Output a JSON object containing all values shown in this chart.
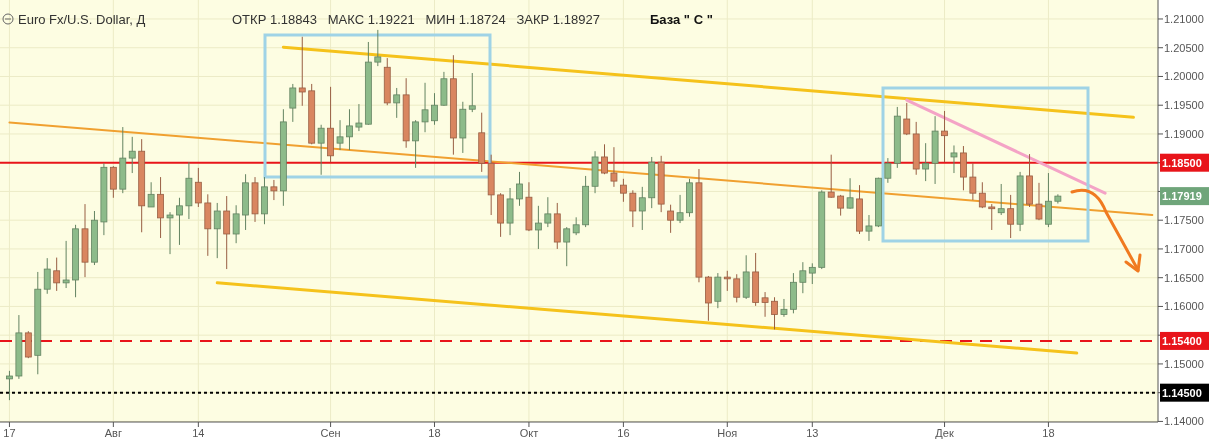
{
  "chart_data": {
    "type": "candlestick",
    "title": "Euro Fx/U.S. Dollar, Д",
    "subtitle": "ОТКР 1.18843   МАКС 1.19221   МИН 1.18724   ЗАКР 1.18927",
    "annotations": [
      "База \" С \"",
      "1.17919"
    ],
    "categories": [
      "17",
      null,
      null,
      null,
      null,
      null,
      null,
      null,
      null,
      null,
      null,
      "Авг",
      null,
      null,
      null,
      null,
      null,
      null,
      null,
      null,
      "14",
      null,
      null,
      null,
      null,
      null,
      null,
      null,
      null,
      null,
      null,
      null,
      null,
      null,
      "Сен",
      null,
      null,
      null,
      null,
      null,
      null,
      null,
      null,
      null,
      null,
      "18",
      null,
      null,
      null,
      null,
      null,
      null,
      null,
      null,
      null,
      "Окт",
      null,
      null,
      null,
      null,
      null,
      null,
      null,
      null,
      null,
      "16",
      null,
      null,
      null,
      null,
      null,
      null,
      null,
      null,
      null,
      null,
      "Ноя",
      null,
      null,
      null,
      null,
      null,
      null,
      null,
      null,
      "13",
      null,
      null,
      null,
      null,
      null,
      null,
      null,
      null,
      null,
      null,
      null,
      null,
      null,
      "Дек",
      null,
      null,
      null,
      null,
      null,
      null,
      null,
      null,
      null,
      null,
      "18",
      null,
      null,
      null,
      null,
      null,
      null,
      null,
      null,
      null,
      null,
      null
    ],
    "ohlc": [
      [
        1.1474,
        1.1488,
        1.1437,
        1.1479
      ],
      [
        1.1479,
        1.1585,
        1.1474,
        1.1554
      ],
      [
        1.1554,
        1.1557,
        1.151,
        1.1512
      ],
      [
        1.1515,
        1.166,
        1.1482,
        1.163
      ],
      [
        1.163,
        1.1684,
        1.1622,
        1.1665
      ],
      [
        1.1662,
        1.1685,
        1.1627,
        1.1641
      ],
      [
        1.1641,
        1.1714,
        1.1632,
        1.1646
      ],
      [
        1.1646,
        1.1742,
        1.1616,
        1.1735
      ],
      [
        1.1735,
        1.1778,
        1.1651,
        1.1677
      ],
      [
        1.1677,
        1.1766,
        1.1672,
        1.175
      ],
      [
        1.1747,
        1.1849,
        1.1724,
        1.1842
      ],
      [
        1.1842,
        1.1844,
        1.1789,
        1.1804
      ],
      [
        1.1804,
        1.1912,
        1.1797,
        1.1858
      ],
      [
        1.1858,
        1.1895,
        1.1832,
        1.187
      ],
      [
        1.187,
        1.1891,
        1.1729,
        1.1775
      ],
      [
        1.1773,
        1.1816,
        1.1773,
        1.1795
      ],
      [
        1.1795,
        1.1825,
        1.1719,
        1.1754
      ],
      [
        1.1754,
        1.1764,
        1.1691,
        1.1759
      ],
      [
        1.1759,
        1.1789,
        1.1707,
        1.1775
      ],
      [
        1.1775,
        1.1851,
        1.1752,
        1.1823
      ],
      [
        1.1816,
        1.1841,
        1.1773,
        1.178
      ],
      [
        1.178,
        1.1795,
        1.1688,
        1.1735
      ],
      [
        1.1735,
        1.178,
        1.1684,
        1.1766
      ],
      [
        1.1766,
        1.1792,
        1.1665,
        1.1726
      ],
      [
        1.1726,
        1.1776,
        1.171,
        1.1761
      ],
      [
        1.1759,
        1.183,
        1.1733,
        1.1815
      ],
      [
        1.1815,
        1.1825,
        1.1747,
        1.1761
      ],
      [
        1.1761,
        1.1825,
        1.1743,
        1.1808
      ],
      [
        1.1808,
        1.182,
        1.1785,
        1.1801
      ],
      [
        1.1801,
        1.1943,
        1.1775,
        1.1921
      ],
      [
        1.1945,
        1.1987,
        1.1921,
        1.198
      ],
      [
        1.198,
        1.2069,
        1.1949,
        1.1973
      ],
      [
        1.1975,
        1.1987,
        1.1882,
        1.1884
      ],
      [
        1.1884,
        1.1916,
        1.1829,
        1.191
      ],
      [
        1.191,
        1.1982,
        1.1851,
        1.1862
      ],
      [
        1.1884,
        1.1924,
        1.1872,
        1.1895
      ],
      [
        1.1895,
        1.1943,
        1.1872,
        1.1914
      ],
      [
        1.1912,
        1.1952,
        1.1905,
        1.1919
      ],
      [
        1.1917,
        1.206,
        1.1916,
        1.2025
      ],
      [
        1.2025,
        1.2081,
        1.2018,
        1.2034
      ],
      [
        1.2016,
        1.2032,
        1.195,
        1.1954
      ],
      [
        1.1954,
        1.198,
        1.1928,
        1.1968
      ],
      [
        1.1968,
        1.1997,
        1.1876,
        1.1888
      ],
      [
        1.1888,
        1.1924,
        1.1841,
        1.1921
      ],
      [
        1.1921,
        1.1989,
        1.1903,
        1.1942
      ],
      [
        1.1923,
        1.1971,
        1.1916,
        1.195
      ],
      [
        1.195,
        1.2008,
        1.1949,
        1.1996
      ],
      [
        1.1996,
        1.2037,
        1.1864,
        1.1893
      ],
      [
        1.1893,
        1.1956,
        1.1867,
        1.1943
      ],
      [
        1.1943,
        1.2006,
        1.1938,
        1.1949
      ],
      [
        1.1902,
        1.1937,
        1.1834,
        1.1849
      ],
      [
        1.1849,
        1.1864,
        1.1759,
        1.1794
      ],
      [
        1.1794,
        1.1797,
        1.1721,
        1.1745
      ],
      [
        1.1745,
        1.1806,
        1.1724,
        1.1787
      ],
      [
        1.1787,
        1.1834,
        1.1775,
        1.1813
      ],
      [
        1.179,
        1.1816,
        1.1731,
        1.1733
      ],
      [
        1.1733,
        1.1775,
        1.17,
        1.1745
      ],
      [
        1.1745,
        1.179,
        1.1738,
        1.1761
      ],
      [
        1.1761,
        1.178,
        1.17,
        1.1712
      ],
      [
        1.1712,
        1.1738,
        1.167,
        1.1735
      ],
      [
        1.1728,
        1.1755,
        1.1724,
        1.1742
      ],
      [
        1.1742,
        1.1827,
        1.1738,
        1.1809
      ],
      [
        1.1809,
        1.187,
        1.1797,
        1.186
      ],
      [
        1.186,
        1.1882,
        1.183,
        1.1832
      ],
      [
        1.1832,
        1.1877,
        1.1808,
        1.1818
      ],
      [
        1.1811,
        1.1822,
        1.1782,
        1.1797
      ],
      [
        1.1797,
        1.1802,
        1.1738,
        1.1766
      ],
      [
        1.1766,
        1.1808,
        1.1733,
        1.1789
      ],
      [
        1.1789,
        1.186,
        1.1771,
        1.1851
      ],
      [
        1.1851,
        1.1862,
        1.1764,
        1.1778
      ],
      [
        1.1766,
        1.1777,
        1.1728,
        1.175
      ],
      [
        1.175,
        1.1794,
        1.1745,
        1.1763
      ],
      [
        1.1763,
        1.1822,
        1.1756,
        1.1815
      ],
      [
        1.1815,
        1.1839,
        1.1642,
        1.1651
      ],
      [
        1.1651,
        1.1653,
        1.1575,
        1.1606
      ],
      [
        1.1609,
        1.1658,
        1.1597,
        1.1651
      ],
      [
        1.1651,
        1.1662,
        1.1627,
        1.1648
      ],
      [
        1.1648,
        1.1656,
        1.1607,
        1.1616
      ],
      [
        1.1616,
        1.1689,
        1.1613,
        1.166
      ],
      [
        1.166,
        1.1693,
        1.1601,
        1.1607
      ],
      [
        1.1615,
        1.1625,
        1.1582,
        1.1607
      ],
      [
        1.1609,
        1.1616,
        1.156,
        1.1586
      ],
      [
        1.1586,
        1.1613,
        1.1582,
        1.1595
      ],
      [
        1.1595,
        1.1658,
        1.1588,
        1.1642
      ],
      [
        1.1642,
        1.1677,
        1.1623,
        1.1662
      ],
      [
        1.1658,
        1.1675,
        1.1639,
        1.1668
      ],
      [
        1.1668,
        1.1802,
        1.1665,
        1.1799
      ],
      [
        1.1799,
        1.1864,
        1.1789,
        1.179
      ],
      [
        1.1792,
        1.1794,
        1.1758,
        1.1771
      ],
      [
        1.1771,
        1.1823,
        1.177,
        1.1789
      ],
      [
        1.1787,
        1.1811,
        1.1726,
        1.1731
      ],
      [
        1.1731,
        1.1759,
        1.1714,
        1.174
      ],
      [
        1.174,
        1.1824,
        1.1738,
        1.1823
      ],
      [
        1.1823,
        1.1858,
        1.1815,
        1.1849
      ],
      [
        1.1849,
        1.1947,
        1.1841,
        1.1931
      ],
      [
        1.1926,
        1.1954,
        1.1898,
        1.19
      ],
      [
        1.19,
        1.1921,
        1.1829,
        1.1839
      ],
      [
        1.1839,
        1.1884,
        1.1818,
        1.1849
      ],
      [
        1.1849,
        1.1931,
        1.1813,
        1.1905
      ],
      [
        1.1905,
        1.194,
        1.1851,
        1.1897
      ],
      [
        1.186,
        1.188,
        1.1832,
        1.1867
      ],
      [
        1.1867,
        1.1879,
        1.1802,
        1.1825
      ],
      [
        1.1825,
        1.1849,
        1.1785,
        1.1797
      ],
      [
        1.1797,
        1.1816,
        1.1771,
        1.1773
      ],
      [
        1.1773,
        1.1778,
        1.1733,
        1.177
      ],
      [
        1.1763,
        1.1813,
        1.1759,
        1.177
      ],
      [
        1.177,
        1.1794,
        1.1719,
        1.1743
      ],
      [
        1.1743,
        1.1834,
        1.1731,
        1.1827
      ],
      [
        1.1827,
        1.1865,
        1.1773,
        1.1778
      ],
      [
        1.1778,
        1.1815,
        1.175,
        1.1752
      ],
      [
        1.1743,
        1.1832,
        1.1738,
        1.1783
      ],
      [
        1.1783,
        1.1795,
        1.1779,
        1.17919
      ],
      null,
      null,
      null,
      null,
      null,
      null,
      null,
      null,
      null,
      null
    ],
    "colors": [
      "#8dbb8a",
      "#8dbb8a",
      "#d98660",
      "#8dbb8a",
      "#8dbb8a",
      "#d98660",
      "#8dbb8a",
      "#8dbb8a",
      "#d98660",
      "#8dbb8a",
      "#8dbb8a",
      "#d98660",
      "#8dbb8a",
      "#8dbb8a",
      "#d98660",
      "#8dbb8a",
      "#d98660",
      "#8dbb8a",
      "#8dbb8a",
      "#8dbb8a",
      "#d98660",
      "#d98660",
      "#8dbb8a",
      "#d98660",
      "#8dbb8a",
      "#8dbb8a",
      "#d98660",
      "#8dbb8a",
      "#d98660",
      "#8dbb8a",
      "#8dbb8a",
      "#d98660",
      "#d98660",
      "#8dbb8a",
      "#d98660",
      "#8dbb8a",
      "#8dbb8a",
      "#8dbb8a",
      "#8dbb8a",
      "#8dbb8a",
      "#d98660",
      "#8dbb8a",
      "#d98660",
      "#8dbb8a",
      "#8dbb8a",
      "#8dbb8a",
      "#8dbb8a",
      "#d98660",
      "#8dbb8a",
      "#8dbb8a",
      "#d98660",
      "#d98660",
      "#d98660",
      "#8dbb8a",
      "#8dbb8a",
      "#d98660",
      "#8dbb8a",
      "#8dbb8a",
      "#d98660",
      "#8dbb8a",
      "#8dbb8a",
      "#8dbb8a",
      "#8dbb8a",
      "#d98660",
      "#d98660",
      "#d98660",
      "#d98660",
      "#8dbb8a",
      "#8dbb8a",
      "#d98660",
      "#d98660",
      "#8dbb8a",
      "#8dbb8a",
      "#d98660",
      "#d98660",
      "#8dbb8a",
      "#d98660",
      "#d98660",
      "#8dbb8a",
      "#d98660",
      "#d98660",
      "#d98660",
      "#8dbb8a",
      "#8dbb8a",
      "#8dbb8a",
      "#8dbb8a",
      "#8dbb8a",
      "#d98660",
      "#d98660",
      "#8dbb8a",
      "#d98660",
      "#8dbb8a",
      "#8dbb8a",
      "#8dbb8a",
      "#8dbb8a",
      "#d98660",
      "#d98660",
      "#8dbb8a",
      "#8dbb8a",
      "#d98660",
      "#8dbb8a",
      "#d98660",
      "#d98660",
      "#d98660",
      "#d98660",
      "#8dbb8a",
      "#d98660",
      "#8dbb8a",
      "#d98660",
      "#d98660",
      "#8dbb8a",
      "#8dbb8a",
      null,
      null,
      null,
      null,
      null,
      null,
      null,
      null,
      null,
      null
    ],
    "series": [
      {
        "type": "line",
        "color": "#f5c21b",
        "values": [
          null,
          null,
          null,
          null,
          null,
          null,
          null,
          null,
          null,
          null,
          null,
          null,
          null,
          null,
          null,
          null,
          null,
          null,
          null,
          null,
          null,
          null,
          null,
          null,
          null,
          null,
          null,
          null,
          null,
          1.2051,
          null,
          null,
          null,
          null,
          null,
          null,
          null,
          null,
          null,
          null,
          null,
          null,
          null,
          null,
          null,
          null,
          null,
          null,
          null,
          null,
          null,
          null,
          null,
          null,
          null,
          null,
          null,
          null,
          null,
          null,
          null,
          null,
          null,
          null,
          null,
          null,
          null,
          null,
          null,
          null,
          null,
          null,
          null,
          null,
          null,
          null,
          null,
          null,
          null,
          null,
          null,
          null,
          null,
          null,
          null,
          null,
          null,
          null,
          null,
          null,
          null,
          null,
          null,
          null,
          null,
          null,
          null,
          null,
          null,
          null,
          null,
          null,
          null,
          null,
          null,
          null,
          null,
          null,
          null,
          null,
          null,
          null,
          null,
          null,
          null,
          null,
          null,
          null,
          null,
          1.1929,
          null,
          null
        ]
      },
      {
        "type": "line",
        "color": "#f5c21b",
        "values": [
          null,
          null,
          null,
          null,
          null,
          null,
          null,
          null,
          null,
          null,
          null,
          null,
          null,
          null,
          null,
          null,
          null,
          null,
          null,
          null,
          null,
          null,
          1.1641,
          null,
          null,
          null,
          null,
          null,
          null,
          null,
          null,
          null,
          null,
          null,
          null,
          null,
          null,
          null,
          null,
          null,
          null,
          null,
          null,
          null,
          null,
          null,
          null,
          null,
          null,
          null,
          null,
          null,
          null,
          null,
          null,
          null,
          null,
          null,
          null,
          null,
          null,
          null,
          null,
          null,
          null,
          null,
          null,
          null,
          null,
          null,
          null,
          null,
          null,
          null,
          null,
          null,
          null,
          null,
          null,
          null,
          null,
          null,
          null,
          null,
          null,
          null,
          null,
          null,
          null,
          null,
          null,
          null,
          null,
          null,
          null,
          null,
          null,
          null,
          null,
          null,
          null,
          null,
          null,
          null,
          null,
          null,
          null,
          null,
          null,
          null,
          null,
          null,
          null,
          1.1519,
          null,
          null,
          null,
          null,
          null,
          null,
          null,
          null
        ]
      },
      {
        "type": "line",
        "color": "#f0a030",
        "values": [
          1.192,
          null,
          null,
          null,
          null,
          null,
          null,
          null,
          null,
          null,
          null,
          null,
          null,
          null,
          null,
          null,
          null,
          null,
          null,
          null,
          null,
          null,
          null,
          null,
          null,
          null,
          null,
          null,
          null,
          null,
          null,
          null,
          null,
          null,
          null,
          null,
          null,
          null,
          null,
          null,
          null,
          null,
          null,
          null,
          null,
          null,
          null,
          null,
          null,
          null,
          null,
          null,
          null,
          null,
          null,
          null,
          null,
          null,
          null,
          null,
          null,
          null,
          null,
          null,
          null,
          null,
          null,
          null,
          null,
          null,
          null,
          null,
          null,
          null,
          null,
          null,
          null,
          null,
          null,
          null,
          null,
          null,
          null,
          null,
          null,
          null,
          null,
          null,
          null,
          null,
          null,
          null,
          null,
          null,
          null,
          null,
          null,
          null,
          null,
          null,
          null,
          null,
          null,
          null,
          null,
          null,
          null,
          null,
          null,
          null,
          null,
          null,
          null,
          null,
          null,
          null,
          null,
          null,
          null,
          null,
          null,
          1.1759
        ]
      },
      {
        "type": "line",
        "color": "#f4a3c6",
        "values": [
          null,
          null,
          null,
          null,
          null,
          null,
          null,
          null,
          null,
          null,
          null,
          null,
          null,
          null,
          null,
          null,
          null,
          null,
          null,
          null,
          null,
          null,
          null,
          null,
          null,
          null,
          null,
          null,
          null,
          null,
          null,
          null,
          null,
          null,
          null,
          null,
          null,
          null,
          null,
          null,
          null,
          null,
          null,
          null,
          null,
          null,
          null,
          null,
          null,
          null,
          null,
          null,
          null,
          null,
          null,
          null,
          null,
          null,
          null,
          null,
          null,
          null,
          null,
          null,
          null,
          null,
          null,
          null,
          null,
          null,
          null,
          null,
          null,
          null,
          null,
          null,
          null,
          null,
          null,
          null,
          null,
          null,
          null,
          null,
          null,
          null,
          null,
          null,
          null,
          null,
          null,
          null,
          null,
          null,
          null,
          1.1959,
          null,
          null,
          null,
          null,
          null,
          null,
          null,
          null,
          null,
          null,
          null,
          null,
          null,
          null,
          null,
          null,
          null,
          null,
          null,
          null,
          1.1797,
          null,
          null,
          null,
          null,
          null
        ]
      }
    ],
    "ylim": [
      1.1399,
      1.2133
    ],
    "yticks": [
      {
        "value": 1.14,
        "label": "1.14000"
      },
      {
        "value": 1.145,
        "label": "1.14500"
      },
      {
        "value": 1.15,
        "label": "1.15000"
      },
      {
        "value": 1.155,
        "label": null
      },
      {
        "value": 1.16,
        "label": "1.16000"
      },
      {
        "value": 1.165,
        "label": "1.16500"
      },
      {
        "value": 1.17,
        "label": "1.17000"
      },
      {
        "value": 1.175,
        "label": "1.17500"
      },
      {
        "value": 1.18,
        "label": null
      },
      {
        "value": 1.185,
        "label": "1.18500"
      },
      {
        "value": 1.19,
        "label": "1.19000"
      },
      {
        "value": 1.195,
        "label": "1.19500"
      },
      {
        "value": 1.2,
        "label": "1.20000"
      },
      {
        "value": 1.205,
        "label": "1.20500"
      },
      {
        "value": 1.21,
        "label": "1.21000"
      }
    ],
    "grid": true,
    "ref_lines": [
      {
        "axis": "y",
        "value": 1.185,
        "label": "1.18500",
        "color": "#e8141a",
        "line_style": "solid"
      },
      {
        "axis": "y",
        "value": 1.154,
        "label": "1.15400",
        "color": "#e8141a",
        "line_style": "dashed"
      },
      {
        "axis": "y",
        "value": 1.145,
        "label": "1.14500",
        "color": "#000000",
        "line_style": "dotted"
      }
    ]
  }
}
